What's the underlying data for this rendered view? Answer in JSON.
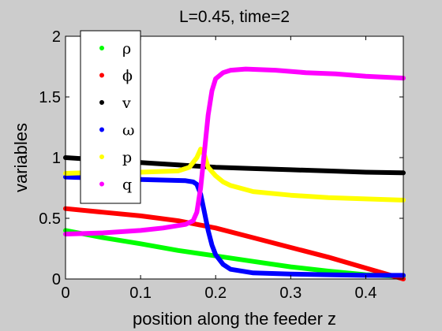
{
  "chart_data": {
    "type": "line",
    "title": "L=0.45, time=2",
    "xlabel": "position along the feeder z",
    "ylabel": "variables",
    "xlim": [
      0,
      0.45
    ],
    "ylim": [
      0,
      2
    ],
    "xticks": [
      0,
      0.1,
      0.2,
      0.3,
      0.4
    ],
    "xtick_labels": [
      "0",
      "0.1",
      "0.2",
      "0.3",
      "0.4"
    ],
    "yticks": [
      0,
      0.5,
      1,
      1.5,
      2
    ],
    "ytick_labels": [
      "0",
      "0.5",
      "1",
      "1.5",
      "2"
    ],
    "grid": false,
    "legend_position": "top-left",
    "background": "#cccccc",
    "plot_background": "#ffffff",
    "series": [
      {
        "name": "ρ",
        "color": "#00ff00",
        "x": [
          0,
          0.05,
          0.1,
          0.15,
          0.2,
          0.25,
          0.3,
          0.35,
          0.4,
          0.45
        ],
        "y": [
          0.4,
          0.34,
          0.29,
          0.235,
          0.19,
          0.145,
          0.1,
          0.065,
          0.035,
          0.02
        ]
      },
      {
        "name": "ϕ",
        "color": "#ff0000",
        "x": [
          0,
          0.05,
          0.1,
          0.15,
          0.2,
          0.25,
          0.3,
          0.35,
          0.4,
          0.45
        ],
        "y": [
          0.58,
          0.55,
          0.52,
          0.48,
          0.42,
          0.34,
          0.26,
          0.18,
          0.09,
          0.0
        ]
      },
      {
        "name": "v",
        "color": "#000000",
        "x": [
          0,
          0.05,
          0.1,
          0.15,
          0.2,
          0.25,
          0.3,
          0.35,
          0.4,
          0.45
        ],
        "y": [
          1.0,
          0.98,
          0.96,
          0.94,
          0.92,
          0.91,
          0.9,
          0.89,
          0.88,
          0.875
        ]
      },
      {
        "name": "ω",
        "color": "#0000ff",
        "x": [
          0,
          0.05,
          0.1,
          0.13,
          0.16,
          0.17,
          0.175,
          0.18,
          0.185,
          0.19,
          0.195,
          0.2,
          0.21,
          0.22,
          0.25,
          0.3,
          0.35,
          0.4,
          0.45
        ],
        "y": [
          0.84,
          0.83,
          0.82,
          0.815,
          0.81,
          0.8,
          0.78,
          0.7,
          0.55,
          0.4,
          0.28,
          0.2,
          0.12,
          0.08,
          0.05,
          0.04,
          0.035,
          0.03,
          0.03
        ]
      },
      {
        "name": "p",
        "color": "#ffff00",
        "x": [
          0,
          0.05,
          0.1,
          0.15,
          0.165,
          0.175,
          0.18,
          0.185,
          0.19,
          0.2,
          0.21,
          0.22,
          0.25,
          0.3,
          0.35,
          0.4,
          0.45
        ],
        "y": [
          0.87,
          0.88,
          0.88,
          0.89,
          0.92,
          1.0,
          1.07,
          1.02,
          0.92,
          0.85,
          0.8,
          0.77,
          0.72,
          0.69,
          0.67,
          0.66,
          0.65
        ]
      },
      {
        "name": "q",
        "color": "#ff00ff",
        "x": [
          0,
          0.05,
          0.1,
          0.13,
          0.16,
          0.17,
          0.175,
          0.18,
          0.185,
          0.19,
          0.195,
          0.2,
          0.21,
          0.22,
          0.24,
          0.28,
          0.32,
          0.36,
          0.4,
          0.45
        ],
        "y": [
          0.37,
          0.38,
          0.4,
          0.42,
          0.45,
          0.48,
          0.55,
          0.75,
          1.05,
          1.35,
          1.55,
          1.65,
          1.7,
          1.72,
          1.73,
          1.72,
          1.7,
          1.69,
          1.67,
          1.655
        ]
      }
    ]
  }
}
